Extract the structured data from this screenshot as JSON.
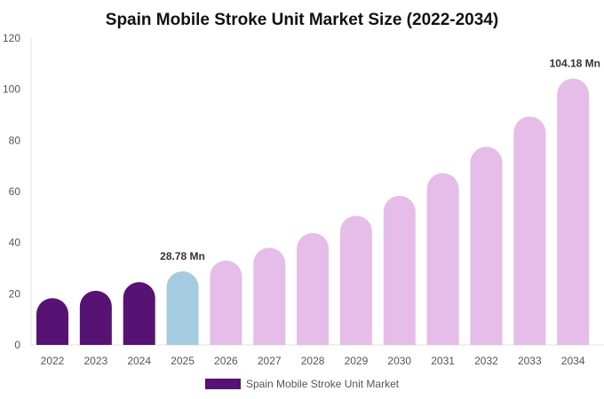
{
  "chart_data": {
    "type": "bar",
    "title": "Spain Mobile Stroke Unit Market Size (2022-2034)",
    "xlabel": "",
    "ylabel": "",
    "categories": [
      "2022",
      "2023",
      "2024",
      "2025",
      "2026",
      "2027",
      "2028",
      "2029",
      "2030",
      "2031",
      "2032",
      "2033",
      "2034"
    ],
    "series": [
      {
        "name": "Spain Mobile Stroke Unit Market",
        "values": [
          18.3,
          21.2,
          24.6,
          28.78,
          33.0,
          38.0,
          43.8,
          50.5,
          58.3,
          67.2,
          77.5,
          89.3,
          104.18
        ]
      }
    ],
    "ylim": [
      0,
      120
    ],
    "yticks": [
      "0",
      "20",
      "40",
      "60",
      "80",
      "100",
      "120"
    ],
    "data_labels": [
      {
        "category": "2025",
        "text": "28.78 Mn"
      },
      {
        "category": "2034",
        "text": "104.18 Mn"
      }
    ],
    "colors": {
      "historical": "#561373",
      "base_year": "#a4cbe0",
      "forecast": "#e6bce8"
    },
    "bar_color_group": [
      "historical",
      "historical",
      "historical",
      "base_year",
      "forecast",
      "forecast",
      "forecast",
      "forecast",
      "forecast",
      "forecast",
      "forecast",
      "forecast",
      "forecast"
    ],
    "legend": {
      "position": "bottom",
      "label": "Spain Mobile Stroke Unit Market",
      "color": "#561373"
    },
    "grid": false
  }
}
